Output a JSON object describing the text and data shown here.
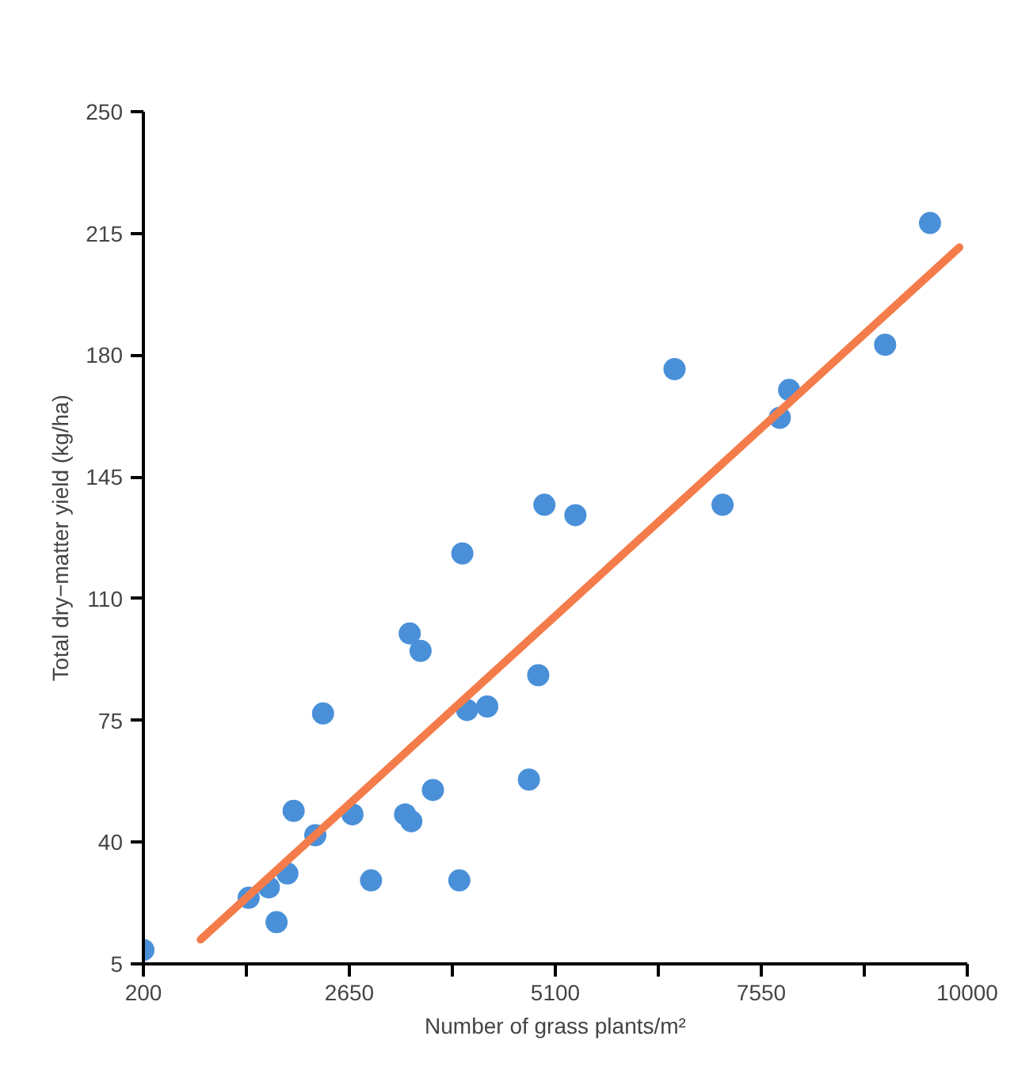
{
  "chart_data": {
    "type": "scatter",
    "xlabel": "Number of grass plants/m²",
    "ylabel": "Total dry−matter yield (kg/ha)",
    "xlim": [
      200,
      10000
    ],
    "ylim": [
      5,
      250
    ],
    "xticks": [
      200,
      {
        "value": 1425,
        "label": null
      },
      2650,
      {
        "value": 3875,
        "label": null
      },
      5100,
      {
        "value": 6325,
        "label": null
      },
      7550,
      {
        "value": 8775,
        "label": null
      },
      10000
    ],
    "yticks": [
      5,
      40,
      75,
      110,
      145,
      180,
      215,
      250
    ],
    "grid": false,
    "series": [
      {
        "marker": "circle",
        "color": "#4a90d9",
        "x": [
          200,
          1452,
          1692,
          1784,
          1913,
          1987,
          2245,
          2337,
          2687,
          2908,
          3313,
          3387,
          3368,
          3497,
          3644,
          3958,
          3994,
          4050,
          4290,
          4786,
          4897,
          4970,
          5339,
          6518,
          7089,
          7770,
          7881,
          9023,
          9557
        ],
        "values": [
          9,
          24,
          27,
          17,
          31,
          49,
          42,
          77,
          48,
          29,
          48,
          46,
          100,
          95,
          55,
          29,
          123,
          78,
          79,
          58,
          88,
          137,
          134,
          176,
          137,
          162,
          170,
          183,
          218
        ]
      },
      {
        "type": "line",
        "marker": "none",
        "color": "#f47c4a",
        "line_style": "solid",
        "x": [
          881,
          9907
        ],
        "values": [
          12,
          211
        ]
      }
    ]
  }
}
